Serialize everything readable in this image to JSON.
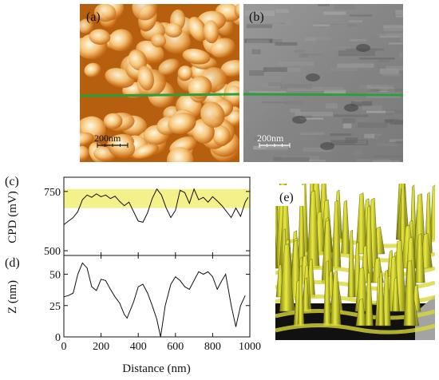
{
  "panels": {
    "a": {
      "label": "(a)",
      "scalebar": "200nm"
    },
    "b": {
      "label": "(b)",
      "scalebar": "200nm"
    },
    "c": {
      "label": "(c)"
    },
    "d": {
      "label": "(d)"
    },
    "e": {
      "label": "(e)"
    }
  },
  "colors": {
    "line_marker": "#2e9e3a",
    "cpd_band": "#f4f08a",
    "afm_light": "#fff2cf",
    "afm_dark": "#b85a10",
    "kpfm_gray": "#8a8a8a",
    "surface_yellow": "#e8e63a"
  },
  "chart_data": [
    {
      "type": "line",
      "panel": "(c)",
      "xlabel": "",
      "ylabel": "CPD (mV)",
      "xlim": [
        0,
        1000
      ],
      "ylim": [
        480,
        810
      ],
      "yticks": [
        500,
        750
      ],
      "highlight_band": [
        680,
        760
      ],
      "series": [
        {
          "x": [
            0,
            25,
            50,
            75,
            100,
            125,
            150,
            175,
            200,
            225,
            250,
            275,
            300,
            325,
            350,
            375,
            400,
            425,
            450,
            475,
            500,
            525,
            550,
            575,
            600,
            625,
            650,
            675,
            700,
            725,
            750,
            775,
            800,
            825,
            850,
            875,
            900,
            925,
            950,
            975,
            990
          ],
          "values": [
            610,
            625,
            640,
            665,
            715,
            735,
            725,
            740,
            728,
            735,
            720,
            730,
            708,
            690,
            705,
            665,
            625,
            620,
            660,
            720,
            760,
            735,
            680,
            640,
            670,
            755,
            745,
            700,
            760,
            715,
            725,
            705,
            728,
            710,
            690,
            665,
            640,
            680,
            645,
            705,
            725
          ]
        }
      ]
    },
    {
      "type": "line",
      "panel": "(d)",
      "xlabel": "Distance (nm)",
      "ylabel": "Z (nm)",
      "xlim": [
        0,
        1000
      ],
      "ylim": [
        0,
        65
      ],
      "xticks": [
        0,
        200,
        400,
        600,
        800,
        1000
      ],
      "yticks": [
        0,
        25,
        50
      ],
      "series": [
        {
          "x": [
            0,
            25,
            50,
            75,
            100,
            125,
            150,
            175,
            200,
            225,
            250,
            275,
            300,
            325,
            340,
            375,
            400,
            425,
            450,
            475,
            500,
            520,
            545,
            575,
            600,
            625,
            650,
            675,
            700,
            725,
            750,
            775,
            800,
            825,
            850,
            870,
            900,
            925,
            950,
            975
          ],
          "values": [
            32,
            33,
            35,
            50,
            59,
            55,
            40,
            37,
            46,
            45,
            38,
            32,
            27,
            18,
            15,
            28,
            40,
            42,
            35,
            25,
            14,
            0,
            25,
            42,
            48,
            45,
            40,
            38,
            45,
            52,
            50,
            52,
            48,
            38,
            45,
            50,
            25,
            8,
            25,
            33
          ]
        }
      ]
    }
  ]
}
